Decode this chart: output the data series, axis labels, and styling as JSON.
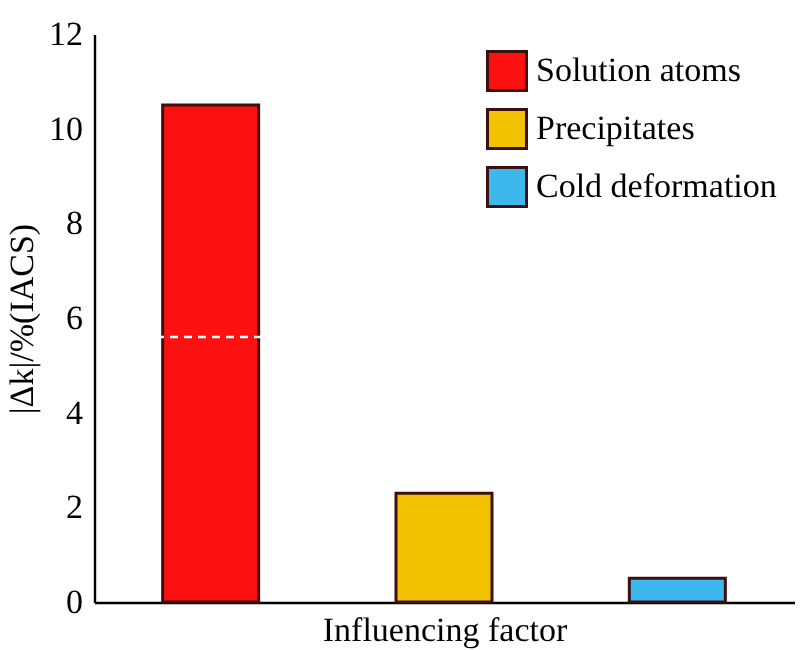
{
  "chart_data": {
    "type": "bar",
    "xlabel": "Influencing factor",
    "ylabel": "|Δk|/%(IACS)",
    "categories": [
      null,
      null,
      null
    ],
    "series": [
      {
        "name": "Solution atoms",
        "color": "#fc1010",
        "values": [
          10.5,
          null,
          null
        ]
      },
      {
        "name": "Precipitates",
        "color": "#f2c200",
        "values": [
          null,
          2.3,
          null
        ]
      },
      {
        "name": "Cold deformation",
        "color": "#3cb8ec",
        "values": [
          null,
          null,
          0.5
        ]
      }
    ],
    "ylim": [
      0,
      12
    ],
    "yticks": [
      0,
      2,
      4,
      6,
      8,
      10,
      12
    ],
    "ref_lines": [
      {
        "axis": "y",
        "value": 5.6,
        "color": "#ffffff",
        "line_style": "dashed"
      }
    ],
    "legend": "top right",
    "tick_labels": "y",
    "grid": false
  }
}
